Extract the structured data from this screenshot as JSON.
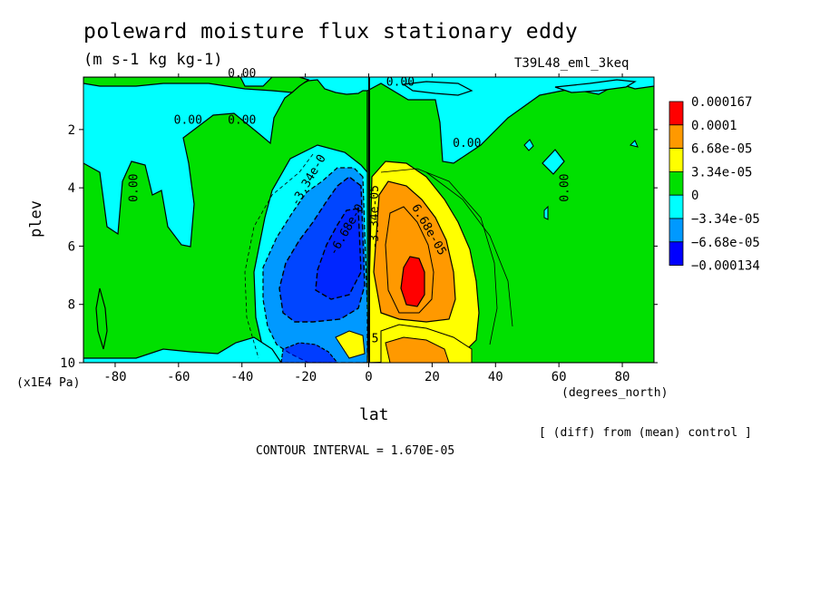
{
  "figure": {
    "title": "poleward moisture flux stationary eddy",
    "units": "(m s-1 kg kg-1)",
    "dataset": "T39L48_eml_3keq",
    "y_multiplier": "(x1E4 Pa)",
    "x_units": "(degrees_north)",
    "note": "[ (diff) from (mean) control ]",
    "contour_interval": "CONTOUR INTERVAL = 1.670E-05"
  },
  "chart_data": {
    "type": "heatmap",
    "title": "poleward moisture flux stationary eddy",
    "xlabel": "lat",
    "ylabel": "plev",
    "xlim": [
      -90,
      90
    ],
    "ylim": [
      10,
      0.2
    ],
    "x_ticks": [
      -80,
      -60,
      -40,
      -20,
      0,
      20,
      40,
      60,
      80
    ],
    "y_ticks": [
      2,
      4,
      6,
      8,
      10
    ],
    "colorbar": {
      "levels": [
        "0.000167",
        "0.0001",
        "6.68e-05",
        "3.34e-05",
        "0",
        "−3.34e-05",
        "−6.68e-05",
        "−0.000134"
      ],
      "colors": [
        "#ff0000",
        "#ff9900",
        "#ffff00",
        "#00e000",
        "#00ffff",
        "#0099ff",
        "#0000ff"
      ]
    },
    "contour_labels": [
      {
        "text": "0.00",
        "lat": -40,
        "plev": 0.2
      },
      {
        "text": "0.00",
        "lat": 10,
        "plev": 0.5
      },
      {
        "text": "0.00",
        "lat": -57,
        "plev": 1.8
      },
      {
        "text": "0.00",
        "lat": -40,
        "plev": 1.8
      },
      {
        "text": "0.00",
        "lat": -73,
        "plev": 4.0
      },
      {
        "text": "0.00",
        "lat": 31,
        "plev": 2.6
      },
      {
        "text": "0.00",
        "lat": 63,
        "plev": 4.0
      },
      {
        "text": "-3.34e-0",
        "lat": -18,
        "plev": 3.8
      },
      {
        "text": "-6.68e-0",
        "lat": -6,
        "plev": 5.5
      },
      {
        "text": "-3.34e-05",
        "lat": 3,
        "plev": 5.0
      },
      {
        "text": "6.68e-05",
        "lat": 18,
        "plev": 5.5
      },
      {
        "text": "5",
        "lat": 2,
        "plev": 9.3
      }
    ]
  }
}
